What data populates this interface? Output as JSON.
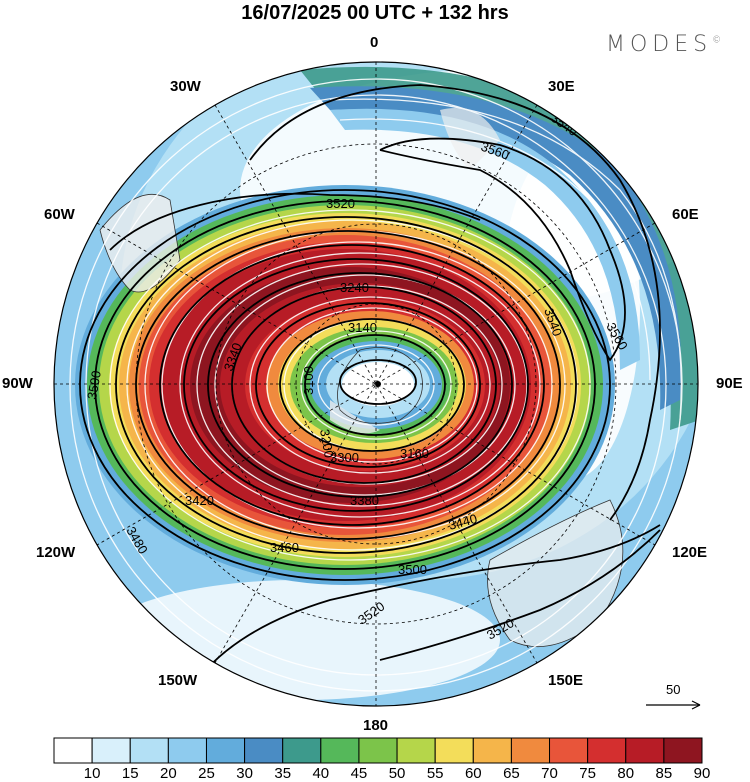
{
  "title": "16/07/2025  00 UTC  + 132 hrs",
  "brand": "MODES",
  "brand_mark": "©",
  "meridian_labels": {
    "m0": "0",
    "m30e": "30E",
    "m60e": "60E",
    "m90e": "90E",
    "m120e": "120E",
    "m150e": "150E",
    "m180": "180",
    "m150w": "150W",
    "m120w": "120W",
    "m90w": "90W",
    "m60w": "60W",
    "m30w": "30W"
  },
  "contour_labels": [
    "3540",
    "3560",
    "3520",
    "3500",
    "3480",
    "3460",
    "3440",
    "3420",
    "3380",
    "3340",
    "3300",
    "3240",
    "3200",
    "3160",
    "3140",
    "3100",
    "3540",
    "3560",
    "3500",
    "3520",
    "3520"
  ],
  "wind_reference": {
    "value": "50"
  },
  "colorbar": {
    "labels": [
      "10",
      "15",
      "20",
      "25",
      "30",
      "35",
      "40",
      "45",
      "50",
      "55",
      "60",
      "65",
      "70",
      "75",
      "80",
      "85",
      "90"
    ],
    "colors": [
      "#ffffff",
      "#d9f0fb",
      "#b3e0f5",
      "#8ecbee",
      "#62acdc",
      "#4a8cc4",
      "#3d9a8c",
      "#55b85a",
      "#7cc44a",
      "#b5d64a",
      "#f3dd5a",
      "#f5b54a",
      "#f08a3e",
      "#e8553a",
      "#d42f2f",
      "#b71c26",
      "#8e1520"
    ]
  },
  "colors": {
    "jet_core": "#b71c26",
    "land": "#eeeeee",
    "outline": "#000000"
  }
}
